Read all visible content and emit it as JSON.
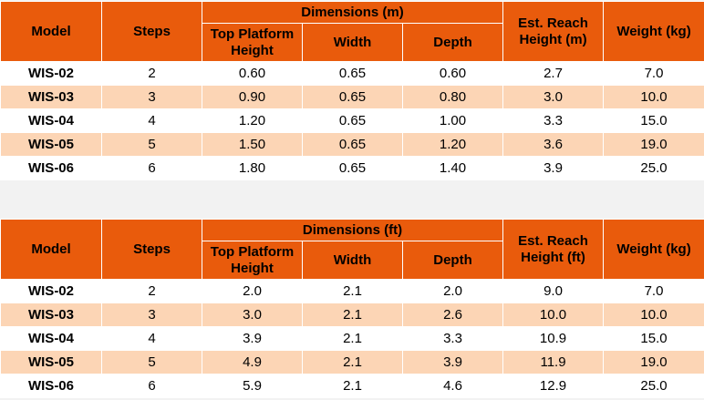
{
  "tables": [
    {
      "headers": {
        "model": "Model",
        "steps": "Steps",
        "dimensions": "Dimensions (m)",
        "top_platform": "Top Platform Height",
        "width": "Width",
        "depth": "Depth",
        "reach": "Est. Reach Height (m)",
        "weight": "Weight (kg)"
      },
      "rows": [
        [
          "WIS-02",
          "2",
          "0.60",
          "0.65",
          "0.60",
          "2.7",
          "7.0"
        ],
        [
          "WIS-03",
          "3",
          "0.90",
          "0.65",
          "0.80",
          "3.0",
          "10.0"
        ],
        [
          "WIS-04",
          "4",
          "1.20",
          "0.65",
          "1.00",
          "3.3",
          "15.0"
        ],
        [
          "WIS-05",
          "5",
          "1.50",
          "0.65",
          "1.20",
          "3.6",
          "19.0"
        ],
        [
          "WIS-06",
          "6",
          "1.80",
          "0.65",
          "1.40",
          "3.9",
          "25.0"
        ]
      ]
    },
    {
      "headers": {
        "model": "Model",
        "steps": "Steps",
        "dimensions": "Dimensions (ft)",
        "top_platform": "Top Platform Height",
        "width": "Width",
        "depth": "Depth",
        "reach": "Est. Reach Height (ft)",
        "weight": "Weight (kg)"
      },
      "rows": [
        [
          "WIS-02",
          "2",
          "2.0",
          "2.1",
          "2.0",
          "9.0",
          "7.0"
        ],
        [
          "WIS-03",
          "3",
          "3.0",
          "2.1",
          "2.6",
          "10.0",
          "10.0"
        ],
        [
          "WIS-04",
          "4",
          "3.9",
          "2.1",
          "3.3",
          "10.9",
          "15.0"
        ],
        [
          "WIS-05",
          "5",
          "4.9",
          "2.1",
          "3.9",
          "11.9",
          "19.0"
        ],
        [
          "WIS-06",
          "6",
          "5.9",
          "2.1",
          "4.6",
          "12.9",
          "25.0"
        ]
      ]
    }
  ],
  "colors": {
    "header": "#e95b0c",
    "row_alt": "#fcd5b5",
    "row": "#ffffff"
  }
}
